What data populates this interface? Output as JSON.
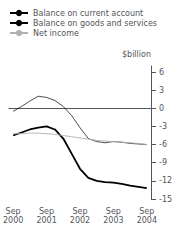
{
  "chart_data": {
    "type": "line",
    "categories": [
      "Sep\n2000",
      null,
      null,
      null,
      "Sep\n2001",
      null,
      null,
      null,
      "Sep\n2002",
      null,
      null,
      null,
      "Sep\n2003",
      null,
      null,
      null,
      "Sep\n2004"
    ],
    "series": [
      {
        "name": "Balance on current account",
        "color": "#000000",
        "values": [
          -4.5,
          -4.0,
          -3.5,
          -3.2,
          -3.0,
          -3.5,
          -5.0,
          -7.5,
          -10.0,
          -11.5,
          -12.0,
          -12.2,
          -12.3,
          -12.5,
          -12.8,
          -13.0,
          -13.2
        ]
      },
      {
        "name": "Balance on goods and services",
        "color": "#000000",
        "values": [
          -0.5,
          0.3,
          1.2,
          2.0,
          1.8,
          1.3,
          0.3,
          -1.2,
          -3.2,
          -5.0,
          -5.5,
          -5.7,
          -5.5,
          -5.6,
          -5.8,
          -5.9,
          -6.0
        ]
      },
      {
        "name": "Net income",
        "color": "#b0b0b0",
        "values": [
          -4.2,
          -4.2,
          -4.1,
          -4.1,
          -4.2,
          -4.3,
          -4.5,
          -4.7,
          -4.9,
          -5.1,
          -5.3,
          -5.4,
          -5.5,
          -5.6,
          -5.7,
          -5.8,
          -6.0
        ]
      }
    ],
    "ylabel": "$billion",
    "ylim": [
      -15,
      7
    ],
    "yticks": [
      6,
      3,
      0,
      -3,
      -6,
      -9,
      -12,
      -15
    ],
    "grid": false,
    "legend": "upper left"
  }
}
